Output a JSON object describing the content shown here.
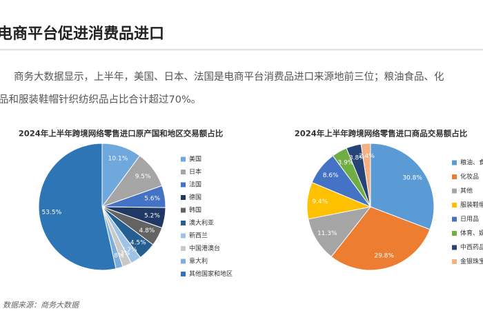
{
  "header": {
    "title": "电商平台促进消费品进口"
  },
  "paragraph": {
    "lines": [
      "商务大数据显示，上半年，美国、日本、法国是电商平台消费品进口来源地前三位；粮油食品、化",
      "品和服装鞋帽针织纺织品占比合计超过70%。"
    ]
  },
  "chart_data": [
    {
      "type": "pie",
      "title": "2024年上半年跨境网络零售进口原产国和地区交易额占比",
      "categories": [
        "美国",
        "日本",
        "法国",
        "德国",
        "韩国",
        "澳大利亚",
        "新西兰",
        "中国港澳台",
        "意大利",
        "其他国家和地区"
      ],
      "values": [
        10.1,
        9.5,
        5.6,
        5.2,
        4.8,
        4.5,
        2.7,
        2.3,
        1.8,
        53.5
      ],
      "value_labels": [
        "10.1%",
        "9.5%",
        "5.6%",
        "5.2%",
        "4.8%",
        "4.5%",
        "2.7%",
        "2.3%",
        "1.8%",
        "53.5%"
      ],
      "colors": [
        "#6fa8dc",
        "#a5a5a5",
        "#4472c4",
        "#1f3864",
        "#636363",
        "#255e91",
        "#9dc3e6",
        "#c9c9c9",
        "#7cafdd",
        "#2e75b6"
      ]
    },
    {
      "type": "pie",
      "title": "2024年上半年跨境网络零售进口商品交易额占比",
      "categories": [
        "粮油、食品",
        "化妆品",
        "其他",
        "服装鞋帽、",
        "日用品",
        "体育、娱乐",
        "中西药品",
        "金银珠宝"
      ],
      "values": [
        30.8,
        29.8,
        11.3,
        9.4,
        8.6,
        3.9,
        3.8,
        2.4
      ],
      "value_labels": [
        "30.8%",
        "29.8%",
        "11.3%",
        "9.4%",
        "8.6%",
        "3.9%",
        "3.8%",
        "2.4%"
      ],
      "colors": [
        "#5b9bd5",
        "#ed7d31",
        "#a5a5a5",
        "#ffc000",
        "#4472c4",
        "#70ad47",
        "#264478",
        "#f4b183"
      ]
    }
  ],
  "source": "数据来源：商务大数据"
}
